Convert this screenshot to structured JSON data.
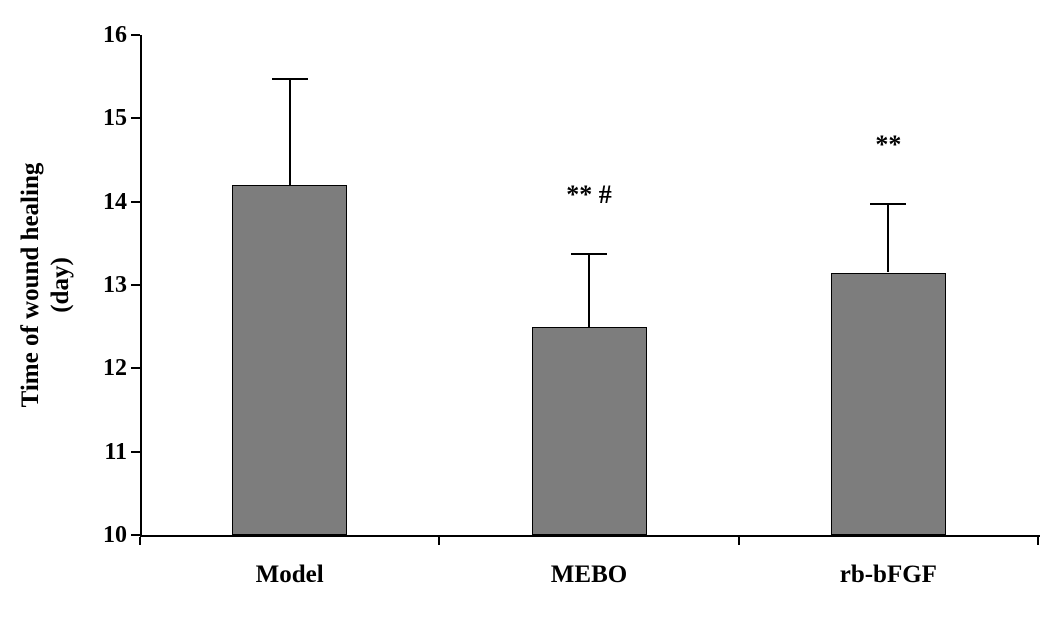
{
  "chart_data": {
    "type": "bar",
    "title": "",
    "categories": [
      "Model",
      "MEBO",
      "rb-bFGF"
    ],
    "values": [
      14.2,
      12.5,
      13.15
    ],
    "errors": [
      1.27,
      0.87,
      0.82
    ],
    "annotations": [
      "",
      "** #",
      "**"
    ],
    "ylabel": "Time of wound healing (day)",
    "ylabel_line1": "Time of wound healing",
    "ylabel_line2": "(day)",
    "xlabel": "",
    "ylim": [
      10,
      16
    ],
    "yticks": [
      10,
      11,
      12,
      13,
      14,
      15,
      16
    ],
    "grid": false,
    "legend": "none",
    "bar_color": "#7d7d7d",
    "bar_border_color": "#000000",
    "error_bar_direction": "upper-only"
  }
}
